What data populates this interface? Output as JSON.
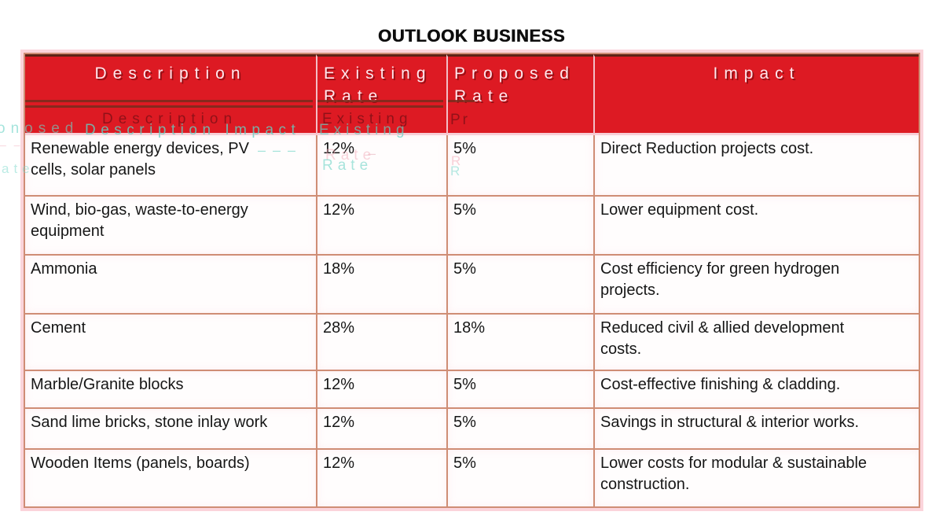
{
  "chart_data": {
    "type": "table",
    "title": "OUTLOOK BUSINESS",
    "columns": [
      "Description",
      "Existing Rate",
      "Proposed Rate",
      "Impact"
    ],
    "rows": [
      [
        "Renewable energy devices, PV cells, solar panels",
        "12%",
        "5%",
        "Direct Reduction projects cost."
      ],
      [
        "Wind, bio-gas, waste-to-energy equipment",
        "12%",
        "5%",
        "Lower equipment cost."
      ],
      [
        "Ammonia",
        "18%",
        "5%",
        "Cost efficiency for green hydrogen projects."
      ],
      [
        "Cement",
        "28%",
        "18%",
        "Reduced civil & allied development costs."
      ],
      [
        "Marble/Granite blocks",
        "12%",
        "5%",
        "Cost-effective finishing & cladding."
      ],
      [
        "Sand lime bricks, stone inlay work",
        "12%",
        "5%",
        "Savings in structural & interior works."
      ],
      [
        "Wooden Items (panels, boards)",
        "12%",
        "5%",
        "Lower costs for modular & sustainable construction."
      ]
    ],
    "layout": {
      "header_fill": "#dd1a23",
      "header_text": "#ffe7ed",
      "grid": "on",
      "border": "#cf8d75"
    }
  },
  "colors": {
    "header_red": "#dd1a23",
    "border_salmon": "#cf8d75",
    "outer_pink": "#fbd4db",
    "dark_rule": "#7a2b1d",
    "ghost_teal": "#6ed4c7",
    "ghost_dark_red": "#801016",
    "body_text": "#161616"
  },
  "artifacts": {
    "description_dark": "Description",
    "description_impact_teal": "Description Impact",
    "proposed_fragment_left": "onosed",
    "rate_fragment_left": "ate",
    "existing_dark": "Existing",
    "existing_teal": "Existing",
    "rate_pink": "Rate",
    "rate_teal": "Rate",
    "pr_dark": "Pr",
    "r_pink": "R",
    "r_teal": "R",
    "dashes_teal": "– – –",
    "dash_pink": "–",
    "dashes_pink_left": "– –"
  }
}
